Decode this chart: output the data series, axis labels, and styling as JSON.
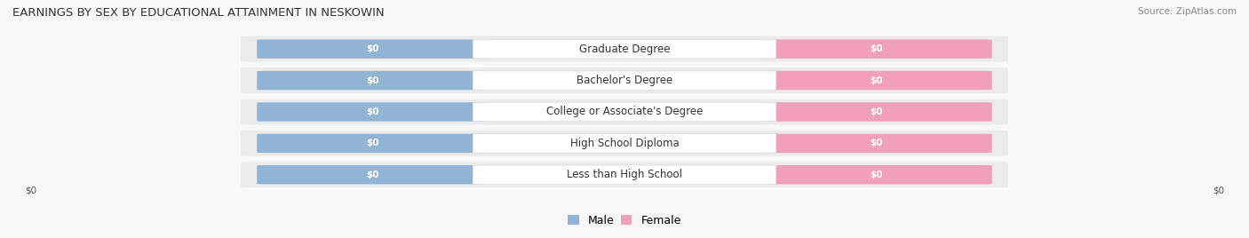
{
  "title": "EARNINGS BY SEX BY EDUCATIONAL ATTAINMENT IN NESKOWIN",
  "source": "Source: ZipAtlas.com",
  "categories": [
    "Less than High School",
    "High School Diploma",
    "College or Associate's Degree",
    "Bachelor's Degree",
    "Graduate Degree"
  ],
  "male_values": [
    0,
    0,
    0,
    0,
    0
  ],
  "female_values": [
    0,
    0,
    0,
    0,
    0
  ],
  "male_color": "#92b4d4",
  "female_color": "#f0a0b8",
  "male_label": "Male",
  "female_label": "Female",
  "bar_label_color": "#ffffff",
  "category_label_color": "#333333",
  "row_bg_color": "#ebebeb",
  "bg_color": "#f8f8f8",
  "title_fontsize": 9.5,
  "source_fontsize": 7.5,
  "bar_value_fontsize": 7.5,
  "category_fontsize": 8.5,
  "legend_fontsize": 9,
  "xlabel_left": "$0",
  "xlabel_right": "$0",
  "value_label": "$0"
}
